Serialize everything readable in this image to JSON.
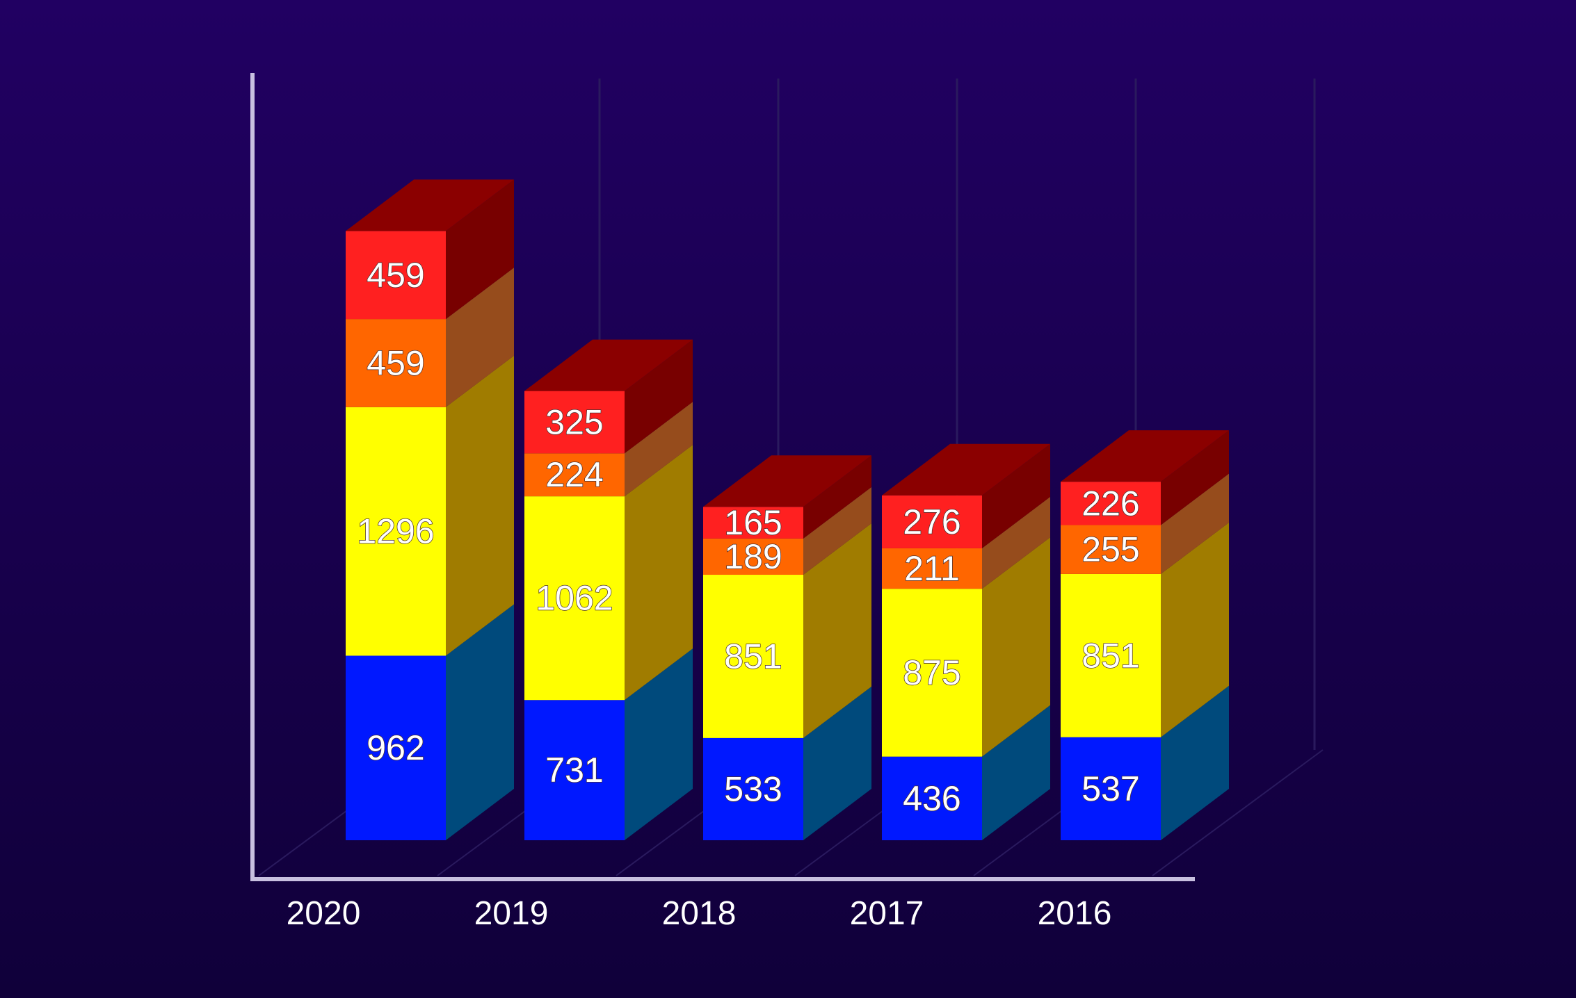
{
  "chart_data": {
    "type": "bar",
    "stacked": true,
    "three_d": true,
    "categories": [
      "2020",
      "2019",
      "2018",
      "2017",
      "2016"
    ],
    "series": [
      {
        "values": [
          962,
          731,
          533,
          436,
          537
        ],
        "color": "#0018ff"
      },
      {
        "values": [
          1296,
          1062,
          851,
          875,
          851
        ],
        "color": "#ffff00"
      },
      {
        "values": [
          459,
          224,
          189,
          211,
          255
        ],
        "color": "#ff6600"
      },
      {
        "values": [
          459,
          325,
          165,
          276,
          226
        ],
        "color": "#ff2020"
      }
    ],
    "side_colors": [
      "#004a7c",
      "#a07c00",
      "#964c1c",
      "#780000"
    ],
    "top_color": "#8b0000",
    "data_labels": true,
    "gridlines": "vertical",
    "legend": "none",
    "title": "",
    "xlabel": "",
    "ylabel": ""
  }
}
